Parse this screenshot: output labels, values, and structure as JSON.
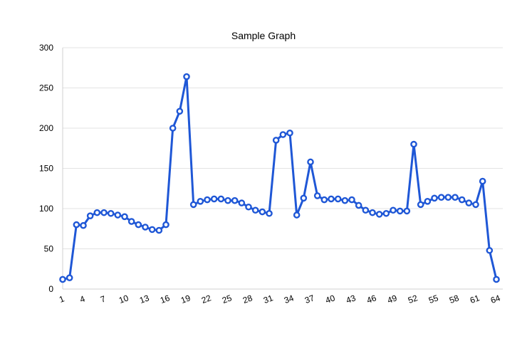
{
  "chart_data": {
    "type": "line",
    "title": "Sample Graph",
    "xlabel": "",
    "ylabel": "",
    "ylim": [
      0,
      300
    ],
    "y_ticks": [
      0,
      50,
      100,
      150,
      200,
      250,
      300
    ],
    "x_tick_labels": [
      "1",
      "4",
      "7",
      "10",
      "13",
      "16",
      "19",
      "22",
      "25",
      "28",
      "31",
      "34",
      "37",
      "40",
      "43",
      "46",
      "49",
      "52",
      "55",
      "58",
      "61",
      "64"
    ],
    "grid": true,
    "legend": "none",
    "line_color": "#1f57d6",
    "x": [
      1,
      2,
      3,
      4,
      5,
      6,
      7,
      8,
      9,
      10,
      11,
      12,
      13,
      14,
      15,
      16,
      17,
      18,
      19,
      20,
      21,
      22,
      23,
      24,
      25,
      26,
      27,
      28,
      29,
      30,
      31,
      32,
      33,
      34,
      35,
      36,
      37,
      38,
      39,
      40,
      41,
      42,
      43,
      44,
      45,
      46,
      47,
      48,
      49,
      50,
      51,
      52,
      53,
      54,
      55,
      56,
      57,
      58,
      59,
      60,
      61,
      62,
      63,
      64
    ],
    "series": [
      {
        "values": [
          12,
          14,
          80,
          79,
          91,
          95,
          95,
          94,
          92,
          90,
          84,
          80,
          77,
          74,
          73,
          80,
          200,
          221,
          264,
          105,
          109,
          111,
          112,
          112,
          110,
          110,
          107,
          102,
          98,
          96,
          94,
          185,
          192,
          194,
          92,
          113,
          158,
          116,
          111,
          112,
          112,
          110,
          111,
          104,
          98,
          95,
          93,
          94,
          98,
          97,
          97,
          180,
          105,
          109,
          113,
          114,
          114,
          114,
          111,
          107,
          105,
          134,
          48,
          12
        ]
      }
    ]
  }
}
